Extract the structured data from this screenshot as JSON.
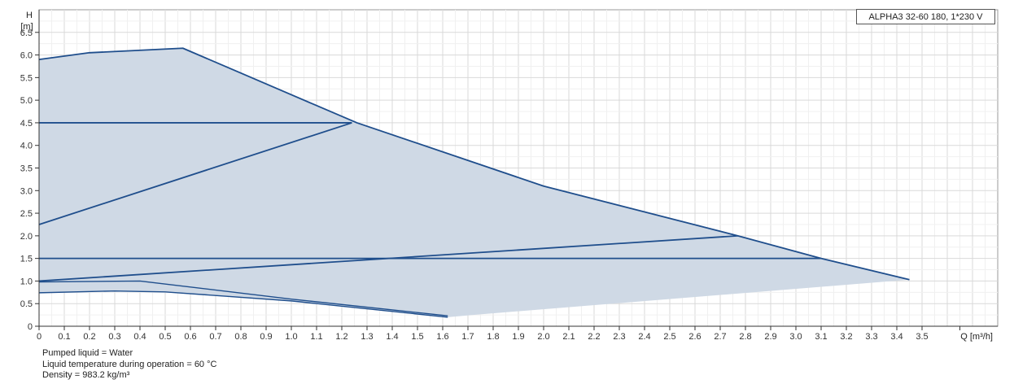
{
  "chart_data": {
    "type": "line",
    "title": "ALPHA3 32-60 180, 1*230 V",
    "ylabel": "H",
    "yunit": "[m]",
    "xlabel": "Q [m³/h]",
    "xlim": [
      0,
      3.8
    ],
    "ylim": [
      0,
      7.0
    ],
    "grid": true,
    "x_ticks": [
      "0",
      "0.1",
      "0.2",
      "0.3",
      "0.4",
      "0.5",
      "0.6",
      "0.7",
      "0.8",
      "0.9",
      "1.0",
      "1.1",
      "1.2",
      "1.3",
      "1.4",
      "1.5",
      "1.6",
      "1.7",
      "1.8",
      "1.9",
      "2.0",
      "2.1",
      "2.2",
      "2.3",
      "2.4",
      "2.5",
      "2.6",
      "2.7",
      "2.8",
      "2.9",
      "3.0",
      "3.1",
      "3.2",
      "3.3",
      "3.4",
      "3.5"
    ],
    "y_ticks": [
      "0",
      "0.5",
      "1.0",
      "1.5",
      "2.0",
      "2.5",
      "3.0",
      "3.5",
      "4.0",
      "4.5",
      "5.0",
      "5.5",
      "6.0",
      "6.5"
    ],
    "operating_area": {
      "color": "#cfd9e5",
      "points": [
        [
          0,
          5.9
        ],
        [
          0.2,
          6.05
        ],
        [
          0.57,
          6.15
        ],
        [
          0.8,
          5.6
        ],
        [
          1.0,
          5.12
        ],
        [
          1.26,
          4.5
        ],
        [
          2.0,
          3.1
        ],
        [
          2.77,
          2.0
        ],
        [
          3.1,
          1.5
        ],
        [
          3.45,
          1.03
        ],
        [
          1.72,
          0.25
        ],
        [
          1.62,
          0.2
        ],
        [
          1.0,
          0.56
        ],
        [
          0.5,
          0.76
        ],
        [
          0.3,
          0.78
        ],
        [
          0,
          0.74
        ]
      ]
    },
    "series": [
      {
        "color": "#1f4e8c",
        "points": [
          [
            0,
            5.9
          ],
          [
            0.2,
            6.05
          ],
          [
            0.57,
            6.15
          ],
          [
            0.8,
            5.6
          ],
          [
            1.0,
            5.12
          ],
          [
            1.26,
            4.5
          ],
          [
            2.0,
            3.1
          ],
          [
            2.77,
            2.0
          ],
          [
            3.1,
            1.5
          ],
          [
            3.45,
            1.03
          ]
        ]
      },
      {
        "color": "#1f4e8c",
        "points": [
          [
            0,
            4.5
          ],
          [
            1.24,
            4.5
          ]
        ]
      },
      {
        "color": "#1f4e8c",
        "points": [
          [
            0,
            2.25
          ],
          [
            1.24,
            4.5
          ]
        ]
      },
      {
        "color": "#1f4e8c",
        "points": [
          [
            0,
            1.5
          ],
          [
            3.1,
            1.5
          ]
        ]
      },
      {
        "color": "#1f4e8c",
        "points": [
          [
            0,
            1.0
          ],
          [
            2.77,
            2.0
          ]
        ]
      },
      {
        "color": "#1f4e8c",
        "points": [
          [
            0,
            0.74
          ],
          [
            0.3,
            0.78
          ],
          [
            0.5,
            0.76
          ],
          [
            1.0,
            0.56
          ],
          [
            1.62,
            0.2
          ]
        ]
      },
      {
        "color": "#1f4e8c",
        "points": [
          [
            0,
            0.98
          ],
          [
            0.4,
            1.0
          ],
          [
            1.0,
            0.6
          ],
          [
            1.62,
            0.23
          ]
        ]
      }
    ]
  },
  "notes": [
    "Pumped liquid = Water",
    "Liquid temperature during operation = 60 °C",
    "Density = 983.2 kg/m³"
  ]
}
